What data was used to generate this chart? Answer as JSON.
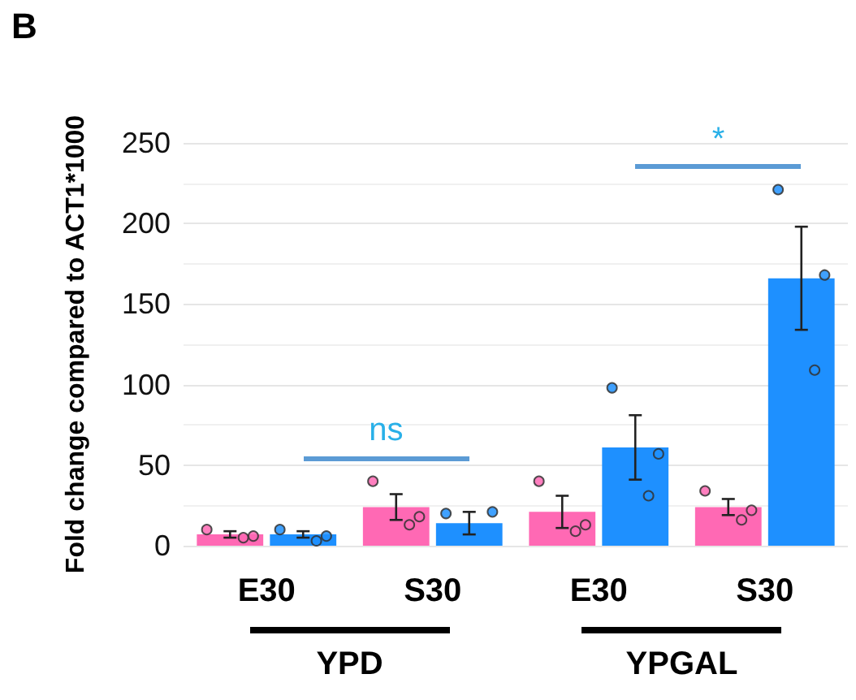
{
  "chart_data": {
    "type": "bar",
    "title": "B",
    "ylabel": "Fold change compared to ACT1*1000",
    "categories": [
      "E30",
      "S30",
      "E30",
      "S30"
    ],
    "series": [
      {
        "color": "#ff69b4",
        "values": [
          7,
          24,
          21,
          24
        ],
        "errors": [
          2,
          8,
          10,
          5
        ]
      },
      {
        "color": "#1e90ff",
        "values": [
          7,
          14,
          61,
          166
        ],
        "errors": [
          2,
          7,
          20,
          32
        ]
      },
      {
        "type": "scatter",
        "color": "#ff69b4",
        "values": [
          10,
          40,
          40,
          34
        ]
      },
      {
        "type": "scatter",
        "color": "#ff69b4",
        "values": [
          6,
          18,
          13,
          22
        ]
      },
      {
        "type": "scatter",
        "color": "#ff69b4",
        "values": [
          5,
          13,
          9,
          16
        ]
      },
      {
        "type": "scatter",
        "color": "#1e90ff",
        "values": [
          10,
          20,
          98,
          221
        ]
      },
      {
        "type": "scatter",
        "color": "#1e90ff",
        "values": [
          6,
          21,
          57,
          168
        ]
      },
      {
        "type": "scatter",
        "color": "#1e90ff",
        "values": [
          3,
          null,
          31,
          109
        ]
      }
    ],
    "annotations": [
      "ns",
      "*",
      "YPD",
      "YPGAL"
    ],
    "ylim": [
      0,
      250
    ],
    "yticks": [
      0,
      50,
      100,
      150,
      200,
      250
    ],
    "grid": "y",
    "marker": "circle"
  }
}
